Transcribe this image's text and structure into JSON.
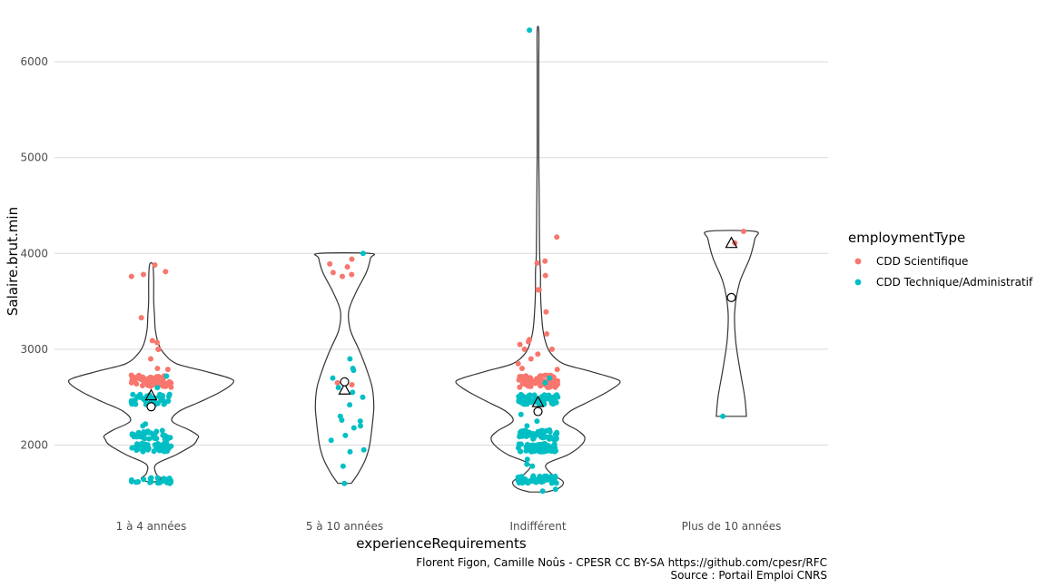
{
  "chart_data": {
    "type": "violin",
    "xlabel": "experienceRequirements",
    "ylabel": "Salaire.brut.min",
    "categories": [
      "1 à 4 années",
      "5 à 10 années",
      "Indifférent",
      "Plus de 10 années"
    ],
    "ylim": [
      1450,
      6420
    ],
    "yticks": [
      2000,
      3000,
      4000,
      5000,
      6000
    ],
    "grid": true,
    "legend": {
      "title": "employmentType",
      "position": "right",
      "entries": [
        {
          "label": "CDD Scientifique",
          "color": "#F8766D"
        },
        {
          "label": "CDD Technique/Administratif",
          "color": "#00BFC4"
        }
      ]
    },
    "series": [
      {
        "name": "CDD Scientifique",
        "color": "#F8766D",
        "groups": [
          {
            "category": "1 à 4 années",
            "clusters": [
              [
                2600,
                2730,
                60
              ]
            ],
            "points": [
              3880,
              3810,
              3780,
              3760,
              3330,
              3090,
              3070,
              3000,
              3000,
              2900,
              2800,
              2790
            ]
          },
          {
            "category": "5 à 10 années",
            "clusters": [],
            "points": [
              3940,
              3890,
              3860,
              3800,
              3780,
              3760,
              2650,
              2630
            ]
          },
          {
            "category": "Indifférent",
            "clusters": [
              [
                2600,
                2730,
                80
              ]
            ],
            "points": [
              4170,
              3920,
              3900,
              3770,
              3620,
              3620,
              3390,
              3160,
              3100,
              3080,
              3050,
              3000,
              3000,
              2950,
              2900,
              2850,
              2800,
              2790
            ]
          },
          {
            "category": "Plus de 10 années",
            "clusters": [],
            "points": [
              4230,
              4110
            ]
          }
        ]
      },
      {
        "name": "CDD Technique/Administratif",
        "color": "#00BFC4",
        "groups": [
          {
            "category": "1 à 4 années",
            "clusters": [
              [
                2420,
                2530,
                40
              ],
              [
                2060,
                2160,
                35
              ],
              [
                1930,
                2020,
                45
              ],
              [
                1600,
                1660,
                20
              ]
            ],
            "points": [
              2720,
              2600,
              2220,
              2200
            ]
          },
          {
            "category": "5 à 10 années",
            "clusters": [],
            "points": [
              4000,
              2900,
              2800,
              2780,
              2700,
              2600,
              2550,
              2500,
              2420,
              2300,
              2260,
              2250,
              2200,
              2180,
              2100,
              2050,
              1950,
              1930,
              1780,
              1600
            ]
          },
          {
            "category": "Indifférent",
            "clusters": [
              [
                2420,
                2530,
                60
              ],
              [
                2060,
                2160,
                50
              ],
              [
                1930,
                2020,
                60
              ],
              [
                1600,
                1680,
                50
              ]
            ],
            "points": [
              6330,
              2700,
              2650,
              2320,
              2250,
              2200,
              1850,
              1800,
              1780,
              1520,
              1540
            ]
          },
          {
            "category": "Plus de 10 années",
            "clusters": [],
            "points": [
              2300
            ]
          }
        ]
      }
    ],
    "violins": [
      {
        "category": "1 à 4 années",
        "min": 1610,
        "max": 3880,
        "profile": [
          [
            1610,
            0.02
          ],
          [
            1650,
            0.12
          ],
          [
            1700,
            0.06
          ],
          [
            1800,
            0.06
          ],
          [
            1900,
            0.3
          ],
          [
            2000,
            0.5
          ],
          [
            2060,
            0.55
          ],
          [
            2100,
            0.56
          ],
          [
            2160,
            0.45
          ],
          [
            2250,
            0.25
          ],
          [
            2350,
            0.33
          ],
          [
            2450,
            0.58
          ],
          [
            2550,
            0.82
          ],
          [
            2650,
            0.98
          ],
          [
            2700,
            0.93
          ],
          [
            2780,
            0.6
          ],
          [
            2850,
            0.3
          ],
          [
            2950,
            0.16
          ],
          [
            3050,
            0.09
          ],
          [
            3200,
            0.05
          ],
          [
            3350,
            0.04
          ],
          [
            3500,
            0.03
          ],
          [
            3700,
            0.03
          ],
          [
            3880,
            0.02
          ]
        ],
        "mean": 2520,
        "median": 2400
      },
      {
        "category": "5 à 10 années",
        "min": 1600,
        "max": 4000,
        "profile": [
          [
            1600,
            0.08
          ],
          [
            1700,
            0.16
          ],
          [
            1850,
            0.25
          ],
          [
            2000,
            0.3
          ],
          [
            2200,
            0.33
          ],
          [
            2400,
            0.35
          ],
          [
            2600,
            0.33
          ],
          [
            2800,
            0.26
          ],
          [
            3000,
            0.17
          ],
          [
            3200,
            0.07
          ],
          [
            3400,
            0.05
          ],
          [
            3600,
            0.14
          ],
          [
            3800,
            0.26
          ],
          [
            3950,
            0.31
          ],
          [
            4000,
            0.31
          ]
        ],
        "mean": 2580,
        "median": 2660
      },
      {
        "category": "Indifférent",
        "min": 1510,
        "max": 6330,
        "profile": [
          [
            1510,
            0.1
          ],
          [
            1550,
            0.25
          ],
          [
            1620,
            0.3
          ],
          [
            1700,
            0.16
          ],
          [
            1800,
            0.1
          ],
          [
            1900,
            0.36
          ],
          [
            2000,
            0.52
          ],
          [
            2080,
            0.56
          ],
          [
            2150,
            0.48
          ],
          [
            2250,
            0.3
          ],
          [
            2350,
            0.38
          ],
          [
            2450,
            0.6
          ],
          [
            2550,
            0.82
          ],
          [
            2650,
            0.98
          ],
          [
            2700,
            0.9
          ],
          [
            2780,
            0.58
          ],
          [
            2850,
            0.3
          ],
          [
            2950,
            0.16
          ],
          [
            3050,
            0.1
          ],
          [
            3200,
            0.06
          ],
          [
            3400,
            0.04
          ],
          [
            3600,
            0.03
          ],
          [
            3800,
            0.03
          ],
          [
            4000,
            0.02
          ],
          [
            4500,
            0.015
          ],
          [
            5000,
            0.01
          ],
          [
            5500,
            0.01
          ],
          [
            6000,
            0.01
          ],
          [
            6330,
            0.01
          ]
        ],
        "mean": 2450,
        "median": 2350
      },
      {
        "category": "Plus de 10 années",
        "min": 2300,
        "max": 4230,
        "profile": [
          [
            2300,
            0.18
          ],
          [
            2500,
            0.16
          ],
          [
            2800,
            0.1
          ],
          [
            3100,
            0.05
          ],
          [
            3400,
            0.04
          ],
          [
            3700,
            0.1
          ],
          [
            3950,
            0.22
          ],
          [
            4150,
            0.28
          ],
          [
            4230,
            0.28
          ]
        ],
        "mean": 4110,
        "median": 3540
      }
    ]
  },
  "caption": {
    "line1": "Florent Figon, Camille Noûs - CPESR CC BY-SA https://github.com/cpesr/RFC",
    "line2": "Source : Portail Emploi CNRS"
  }
}
